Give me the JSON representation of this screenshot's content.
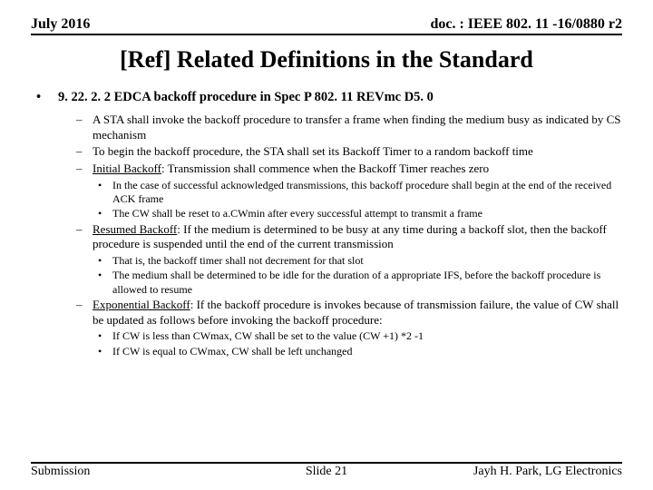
{
  "header": {
    "left": "July 2016",
    "right": "doc. : IEEE 802. 11 -16/0880 r2"
  },
  "title": "[Ref] Related Definitions in the Standard",
  "section": {
    "heading": "9. 22. 2. 2 EDCA backoff procedure in Spec P 802. 11 REVmc D5. 0",
    "items": [
      {
        "text": "A STA shall invoke the backoff procedure to transfer a frame when finding the medium busy as indicated by CS mechanism"
      },
      {
        "text": "To begin the backoff procedure, the STA shall set its Backoff Timer to a random backoff time"
      },
      {
        "underlined": "Initial Backoff",
        "rest": ": Transmission shall commence when the Backoff Timer reaches zero",
        "sub": [
          "In the case of successful acknowledged transmissions, this backoff procedure shall begin at the end of the received ACK frame",
          "The CW shall be reset to a.CWmin after every successful attempt to transmit a frame"
        ]
      },
      {
        "underlined": "Resumed Backoff",
        "rest": ": If the medium is determined to be busy at any time during a backoff slot, then the backoff procedure is suspended until the end of the current transmission",
        "sub": [
          "That is, the backoff timer shall not decrement for that slot",
          "The medium shall be determined to be idle for the duration of a appropriate IFS, before the backoff procedure is allowed to resume"
        ]
      },
      {
        "underlined": "Exponential Backoff",
        "rest": ": If the backoff procedure is invokes because of transmission failure, the value of CW shall be updated as follows before invoking the backoff procedure:",
        "sub": [
          "If CW is less than CWmax, CW shall be set to the value (CW +1) *2 -1",
          "If CW is equal to CWmax, CW shall be left unchanged"
        ]
      }
    ]
  },
  "footer": {
    "left": "Submission",
    "center": "Slide 21",
    "right": "Jayh H. Park, LG Electronics"
  }
}
